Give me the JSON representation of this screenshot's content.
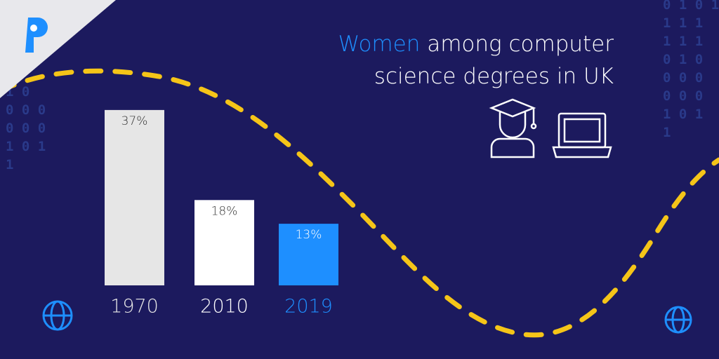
{
  "chart_data": {
    "type": "bar",
    "title": {
      "highlight": "Women",
      "text": "among computer science degrees in UK"
    },
    "categories": [
      "1970",
      "2010",
      "2019"
    ],
    "values": [
      37,
      18,
      13
    ],
    "value_labels": [
      "37%",
      "18%",
      "13%"
    ],
    "colors": [
      "#e6e6e6",
      "#ffffff",
      "#1e8fff"
    ],
    "label_text_colors": [
      "#333333",
      "#333333",
      "#ffffff"
    ]
  },
  "decor": {
    "binary_left": [
      "1 0",
      "0 0 0",
      "0 0 0",
      "1 0 1",
      "1"
    ],
    "binary_right": [
      "0 1 0 1",
      "1 1 1",
      "1 1 1",
      "0 1 0",
      "0 0 0",
      "0 0 0",
      "1 0 1",
      "1"
    ]
  }
}
